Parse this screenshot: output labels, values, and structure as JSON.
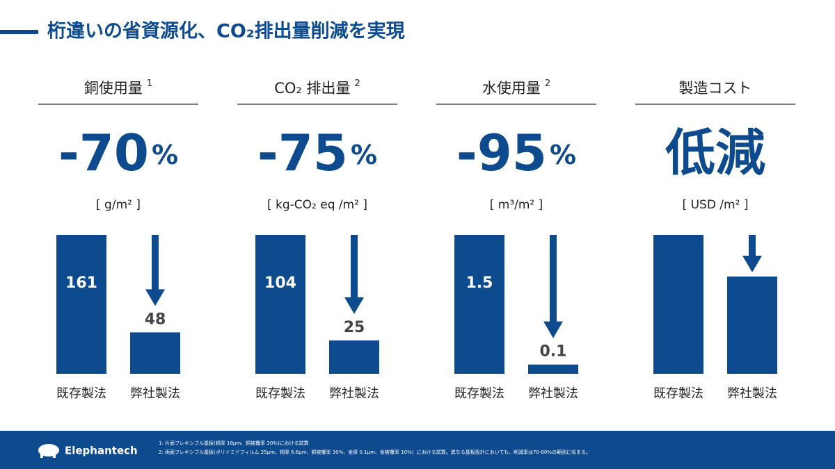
{
  "title": "桁違いの省資源化、CO₂排出量削減を実現",
  "chart_data": [
    {
      "type": "bar",
      "title": "銅使用量",
      "note": "1",
      "headline": "-70",
      "headline_unit": "%",
      "unit": "[ g/m² ]",
      "categories": [
        "既存製法",
        "弊社製法"
      ],
      "values": [
        161,
        48
      ],
      "ylim": [
        0,
        161
      ],
      "color": "#0e4a8e"
    },
    {
      "type": "bar",
      "title": "CO₂ 排出量",
      "note": "2",
      "headline": "-75",
      "headline_unit": "%",
      "unit": "[ kg-CO₂ eq /m² ]",
      "categories": [
        "既存製法",
        "弊社製法"
      ],
      "values": [
        104,
        25
      ],
      "ylim": [
        0,
        104
      ],
      "color": "#0e4a8e"
    },
    {
      "type": "bar",
      "title": "水使用量",
      "note": "2",
      "headline": "-95",
      "headline_unit": "%",
      "unit": "[ m³/m² ]",
      "categories": [
        "既存製法",
        "弊社製法"
      ],
      "values": [
        1.5,
        0.1
      ],
      "ylim": [
        0,
        1.5
      ],
      "color": "#0e4a8e"
    },
    {
      "type": "bar",
      "title": "製造コスト",
      "headline": "低減",
      "unit": "[ USD /m² ]",
      "categories": [
        "既存製法",
        "弊社製法"
      ],
      "color": "#0e4a8e"
    }
  ],
  "footer": {
    "logo": "Elephantech",
    "notes": [
      "1: 片面フレキシブル基板(銅厚 18μm、銅被覆率 30%)における試算",
      "2: 両面フレキシブル基板(ポリイミドフィルム 25μm、銅厚 6.6μm、銅被覆率 30%、金厚 0.1μm、金被覆率 10%）における試算。異なる基板設計においても、削減率は70-80%の範囲に収まる。"
    ]
  }
}
